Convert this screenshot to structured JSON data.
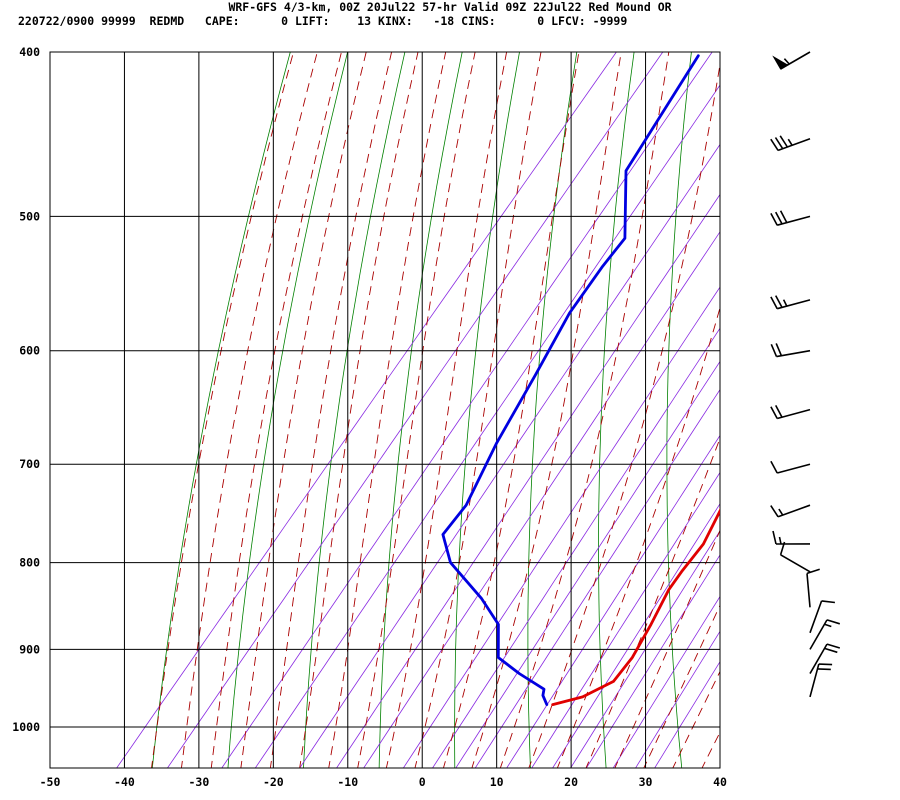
{
  "header": {
    "title": "WRF-GFS 4/3-km, 00Z 20Jul22 57-hr Valid 09Z 22Jul22 Red Mound OR",
    "stats": "220722/0900 99999  REDMD   CAPE:      0 LIFT:    13 KINX:   -18 CINS:      0 LFCV: -9999"
  },
  "chart_data": {
    "type": "line",
    "title": "",
    "xlabel": "",
    "ylabel": "",
    "x_ticks": [
      "-50",
      "-40",
      "-30",
      "-20",
      "-10",
      "0",
      "10",
      "20",
      "30",
      "40"
    ],
    "y_ticks": [
      "400",
      "500",
      "600",
      "700",
      "800",
      "900",
      "1000"
    ],
    "xlim": [
      -50,
      40
    ],
    "ylim": [
      1040,
      400
    ],
    "y_scale": "log-pressure",
    "grid": true,
    "series": [
      {
        "color": "#e00000",
        "p": [
          402,
          470,
          500,
          540,
          580,
          620,
          660,
          700,
          740,
          780,
          810,
          830,
          870,
          910,
          940,
          960,
          970
        ],
        "t": [
          -21,
          -12,
          -8.5,
          -4,
          0,
          2.5,
          5.5,
          9.5,
          12.5,
          14,
          14,
          14.2,
          15.5,
          16.5,
          16.5,
          14,
          10.8
        ]
      },
      {
        "color": "#0000e0",
        "p": [
          402,
          470,
          515,
          535,
          570,
          620,
          680,
          740,
          770,
          800,
          840,
          870,
          910,
          930,
          950,
          958,
          970
        ],
        "t": [
          -38.5,
          -36,
          -29,
          -29,
          -28.5,
          -26.5,
          -24.5,
          -22,
          -22,
          -18,
          -10,
          -5,
          -1.5,
          3,
          8,
          8.5,
          10
        ]
      }
    ],
    "wind_barbs": [
      {
        "p": 400,
        "knots": 55,
        "dir": 240
      },
      {
        "p": 450,
        "knots": 35,
        "dir": 250
      },
      {
        "p": 500,
        "knots": 30,
        "dir": 255
      },
      {
        "p": 560,
        "knots": 25,
        "dir": 255
      },
      {
        "p": 600,
        "knots": 20,
        "dir": 260
      },
      {
        "p": 650,
        "knots": 20,
        "dir": 255
      },
      {
        "p": 700,
        "knots": 10,
        "dir": 255
      },
      {
        "p": 740,
        "knots": 15,
        "dir": 250
      },
      {
        "p": 780,
        "knots": 15,
        "dir": 270
      },
      {
        "p": 810,
        "knots": 10,
        "dir": 300
      },
      {
        "p": 850,
        "knots": 10,
        "dir": 355
      },
      {
        "p": 880,
        "knots": 10,
        "dir": 20
      },
      {
        "p": 900,
        "knots": 15,
        "dir": 30
      },
      {
        "p": 930,
        "knots": 20,
        "dir": 30
      },
      {
        "p": 960,
        "knots": 20,
        "dir": 15
      }
    ],
    "colors": {
      "temperature": "#e00000",
      "dewpoint": "#0000e0",
      "isotherm_grid": "#000000",
      "dry_adiabat": "#008000",
      "moist_adiabat": "#aa0000",
      "mixing_ratio": "#8a2be2"
    }
  }
}
